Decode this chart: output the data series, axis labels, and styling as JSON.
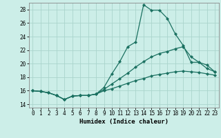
{
  "xlabel": "Humidex (Indice chaleur)",
  "background_color": "#cceee8",
  "grid_color": "#aad4cc",
  "line_color": "#1a7060",
  "xlim": [
    -0.5,
    23.5
  ],
  "ylim": [
    13.5,
    29.0
  ],
  "xticks": [
    0,
    1,
    2,
    3,
    4,
    5,
    6,
    7,
    8,
    9,
    10,
    11,
    12,
    13,
    14,
    15,
    16,
    17,
    18,
    19,
    20,
    21,
    22,
    23
  ],
  "yticks": [
    14,
    16,
    18,
    20,
    22,
    24,
    26,
    28
  ],
  "line1_x": [
    0,
    1,
    2,
    3,
    4,
    5,
    6,
    7,
    8,
    9,
    10,
    11,
    12,
    13,
    14,
    15,
    16,
    17,
    18,
    19,
    20,
    21,
    22,
    23
  ],
  "line1_y": [
    16.0,
    15.9,
    15.7,
    15.3,
    14.7,
    15.2,
    15.3,
    15.3,
    15.5,
    16.5,
    18.5,
    20.3,
    22.5,
    23.2,
    28.7,
    27.9,
    27.9,
    26.7,
    24.4,
    22.7,
    20.2,
    20.2,
    19.3,
    18.8
  ],
  "line2_x": [
    0,
    1,
    2,
    3,
    4,
    5,
    6,
    7,
    8,
    9,
    10,
    11,
    12,
    13,
    14,
    15,
    16,
    17,
    18,
    19,
    20,
    21,
    22,
    23
  ],
  "line2_y": [
    16.0,
    15.9,
    15.7,
    15.3,
    14.7,
    15.2,
    15.3,
    15.3,
    15.5,
    16.2,
    17.0,
    17.8,
    18.6,
    19.5,
    20.3,
    21.0,
    21.5,
    21.8,
    22.2,
    22.5,
    21.0,
    20.2,
    19.8,
    18.8
  ],
  "line3_x": [
    0,
    1,
    2,
    3,
    4,
    5,
    6,
    7,
    8,
    9,
    10,
    11,
    12,
    13,
    14,
    15,
    16,
    17,
    18,
    19,
    20,
    21,
    22,
    23
  ],
  "line3_y": [
    16.0,
    15.9,
    15.7,
    15.3,
    14.7,
    15.2,
    15.3,
    15.3,
    15.5,
    16.0,
    16.3,
    16.7,
    17.1,
    17.5,
    17.8,
    18.2,
    18.4,
    18.6,
    18.8,
    18.9,
    18.8,
    18.7,
    18.5,
    18.3
  ]
}
